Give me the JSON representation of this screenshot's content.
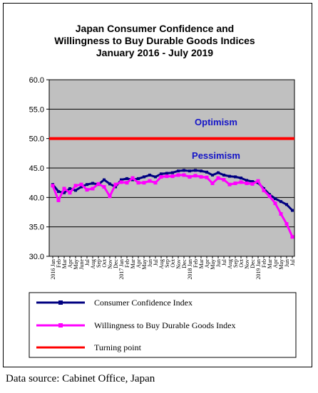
{
  "chart_data": {
    "type": "line",
    "title": [
      "Japan Consumer Confidence and",
      "Willingness to Buy Durable Goods Indices",
      "January 2016 - July 2019"
    ],
    "ylim": [
      30,
      60
    ],
    "yticks": [
      "60.0",
      "55.0",
      "50.0",
      "45.0",
      "40.0",
      "35.0",
      "30.0"
    ],
    "grid": "horizontal",
    "plot_background": "#c0c0c0",
    "x_labels": [
      "2016 Jan",
      "Feb",
      "Mar",
      "Apr",
      "May",
      "June",
      "Jul",
      "Aug",
      "Sep",
      "Oct",
      "Nov",
      "Dec",
      "2017 Jan",
      "Feb",
      "Mar",
      "Apr",
      "May",
      "Jun",
      "Jul",
      "Aug",
      "Sep",
      "Oct",
      "Nov",
      "Dec",
      "2018 Jan",
      "Feb",
      "Mar",
      "Apr",
      "May",
      "Jun",
      "Jul",
      "Aug",
      "Sep",
      "Oct",
      "Nov",
      "Dec",
      "2019 Jan",
      "Feb",
      "Mar",
      "Apr",
      "May",
      "Jun",
      "Jul"
    ],
    "series": [
      {
        "name": "Consumer Confidence Index",
        "color": "#000080",
        "values": [
          42.2,
          41.0,
          40.8,
          41.5,
          41.2,
          41.8,
          42.2,
          42.4,
          42.2,
          43.0,
          42.3,
          41.8,
          43.0,
          43.2,
          43.0,
          43.2,
          43.5,
          43.8,
          43.5,
          44.0,
          44.1,
          44.2,
          44.5,
          44.6,
          44.5,
          44.6,
          44.5,
          44.3,
          43.8,
          44.2,
          43.8,
          43.6,
          43.5,
          43.3,
          42.9,
          42.7,
          42.5,
          41.5,
          40.5,
          39.8,
          39.3,
          38.8,
          37.8
        ]
      },
      {
        "name": "Willingness to Buy Durable Goods Index",
        "color": "#ff00ff",
        "values": [
          42.0,
          39.5,
          41.5,
          40.8,
          42.0,
          42.2,
          41.3,
          41.5,
          42.3,
          41.8,
          40.2,
          42.2,
          42.6,
          42.5,
          43.3,
          42.5,
          42.5,
          42.8,
          42.5,
          43.5,
          43.6,
          43.6,
          43.8,
          43.8,
          43.5,
          43.7,
          43.5,
          43.4,
          42.4,
          43.3,
          43.0,
          42.2,
          42.4,
          42.6,
          42.4,
          42.3,
          42.8,
          41.2,
          40.2,
          39.0,
          37.2,
          35.5,
          33.3
        ]
      },
      {
        "name": "Turning point",
        "color": "#ff0000",
        "values": [
          50.0,
          50.0
        ]
      }
    ],
    "annotations": [
      "Optimism",
      "Pessimism"
    ],
    "legend": "bottom"
  },
  "source_note": "Data source: Cabinet Office, Japan"
}
